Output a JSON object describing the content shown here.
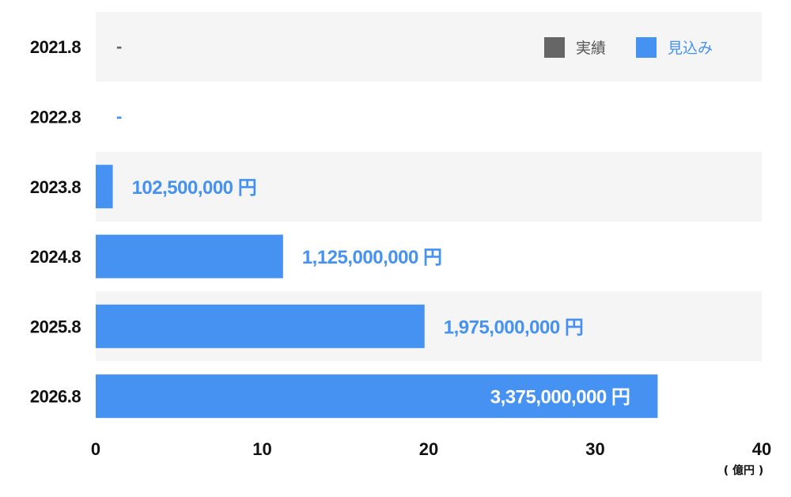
{
  "chart_data": {
    "type": "bar",
    "orientation": "horizontal",
    "categories": [
      "2021.8",
      "2022.8",
      "2023.8",
      "2024.8",
      "2025.8",
      "2026.8"
    ],
    "series": [
      {
        "name": "実績",
        "color": "#666666",
        "values": [
          null,
          null,
          null,
          null,
          null,
          null
        ]
      },
      {
        "name": "見込み",
        "color": "#4592f3",
        "values": [
          null,
          null,
          1.025,
          11.25,
          19.75,
          33.75
        ]
      }
    ],
    "data_labels": [
      "-",
      "-",
      "102,500,000 円",
      "1,125,000,000 円",
      "1,975,000,000 円",
      "3,375,000,000 円"
    ],
    "xticks": [
      "0",
      "10",
      "20",
      "30",
      "40"
    ],
    "xlim": [
      0,
      40
    ],
    "unit": "( 億円 )",
    "legend_position": "top-right",
    "grid": false,
    "row_band_color": "#f5f5f5"
  }
}
